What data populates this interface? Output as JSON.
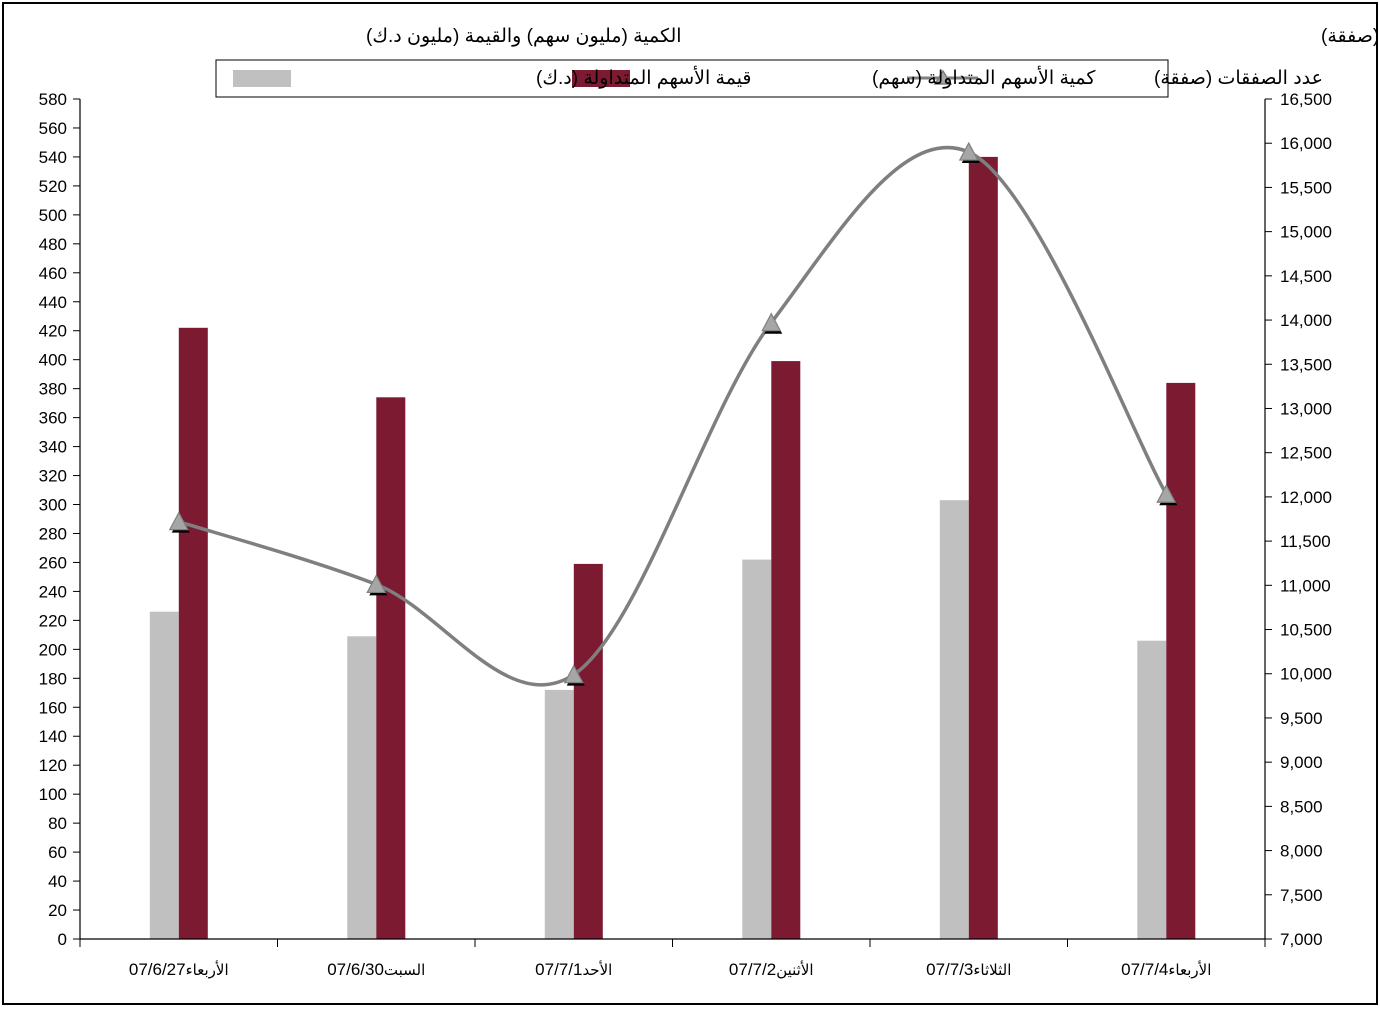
{
  "chart_data": {
    "type": "bar",
    "axis_titles": {
      "left": "الكمية (مليون سهم) والقيمة (مليون د.ك)",
      "right": "عدد الصفقات (صفقة)"
    },
    "categories": [
      {
        "day": "الأربعاء",
        "date": "07/6/27"
      },
      {
        "day": "السبت",
        "date": "07/6/30"
      },
      {
        "day": "الأحد",
        "date": "07/7/1"
      },
      {
        "day": "الأثنين",
        "date": "07/7/2"
      },
      {
        "day": "الثلاثاء",
        "date": "07/7/3"
      },
      {
        "day": "الأربعاء",
        "date": "07/7/4"
      }
    ],
    "series": [
      {
        "name": "قيمة الأسهم  المتداولة (د.ك)",
        "type": "bar",
        "axis": "left",
        "values": [
          226,
          209,
          172,
          262,
          303,
          206
        ]
      },
      {
        "name": "كمية الأسهم المتداولة (سهم)",
        "type": "bar",
        "axis": "left",
        "values": [
          422,
          374,
          259,
          399,
          540,
          384
        ]
      },
      {
        "name": "عدد الصفقات (صفقة)",
        "type": "line",
        "axis": "right",
        "values": [
          11720,
          11010,
          9990,
          13970,
          15900,
          12030
        ]
      }
    ],
    "left_axis": {
      "min": 0,
      "max": 580,
      "step": 20
    },
    "right_axis": {
      "min": 7000,
      "max": 16500,
      "step": 500
    },
    "legend_position": "top",
    "grid": false,
    "colors": {
      "value_bar": "#C0C0C0",
      "quantity_bar": "#7B1A31",
      "deals_line": "#7F7F7F",
      "marker_fill": "#A6A6A6",
      "axis": "#000000"
    }
  }
}
